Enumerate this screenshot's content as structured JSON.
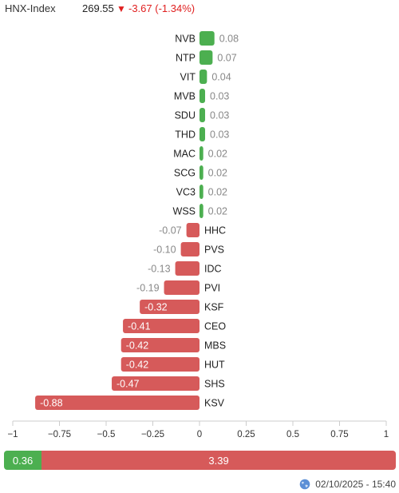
{
  "index": {
    "name": "HNX-Index",
    "value": "269.55",
    "arrow_icon": "down-arrow-icon",
    "change": "-3.67 (-1.34%)",
    "change_color": "#e02020"
  },
  "colors": {
    "positive": "#4caf50",
    "negative": "#d65a5a",
    "label_text": "#888888"
  },
  "chart_data": {
    "type": "bar",
    "orientation": "horizontal",
    "categories": [
      "NVB",
      "NTP",
      "VIT",
      "MVB",
      "SDU",
      "THD",
      "MAC",
      "SCG",
      "VC3",
      "WSS",
      "HHC",
      "PVS",
      "IDC",
      "PVI",
      "KSF",
      "CEO",
      "MBS",
      "HUT",
      "SHS",
      "KSV"
    ],
    "values": [
      0.08,
      0.07,
      0.04,
      0.03,
      0.03,
      0.03,
      0.02,
      0.02,
      0.02,
      0.02,
      -0.07,
      -0.1,
      -0.13,
      -0.19,
      -0.32,
      -0.41,
      -0.42,
      -0.42,
      -0.47,
      -0.88
    ],
    "value_labels": [
      "0.08",
      "0.07",
      "0.04",
      "0.03",
      "0.03",
      "0.03",
      "0.02",
      "0.02",
      "0.02",
      "0.02",
      "-0.07",
      "-0.10",
      "-0.13",
      "-0.19",
      "-0.32",
      "-0.41",
      "-0.42",
      "-0.42",
      "-0.47",
      "-0.88"
    ],
    "xlim": [
      -1,
      1
    ],
    "x_ticks": [
      -1,
      -0.75,
      -0.5,
      -0.25,
      0,
      0.25,
      0.5,
      0.75,
      1
    ],
    "x_tick_labels": [
      "−1",
      "−0.75",
      "−0.5",
      "−0.25",
      "0",
      "0.25",
      "0.5",
      "0.75",
      "1"
    ],
    "grid": false
  },
  "summary": {
    "positive_total": "0.36",
    "negative_total": "3.39",
    "positive_value": 0.36,
    "negative_value": 3.39
  },
  "footer": {
    "timestamp": "02/10/2025 - 15:40",
    "icon": "globe-icon"
  }
}
